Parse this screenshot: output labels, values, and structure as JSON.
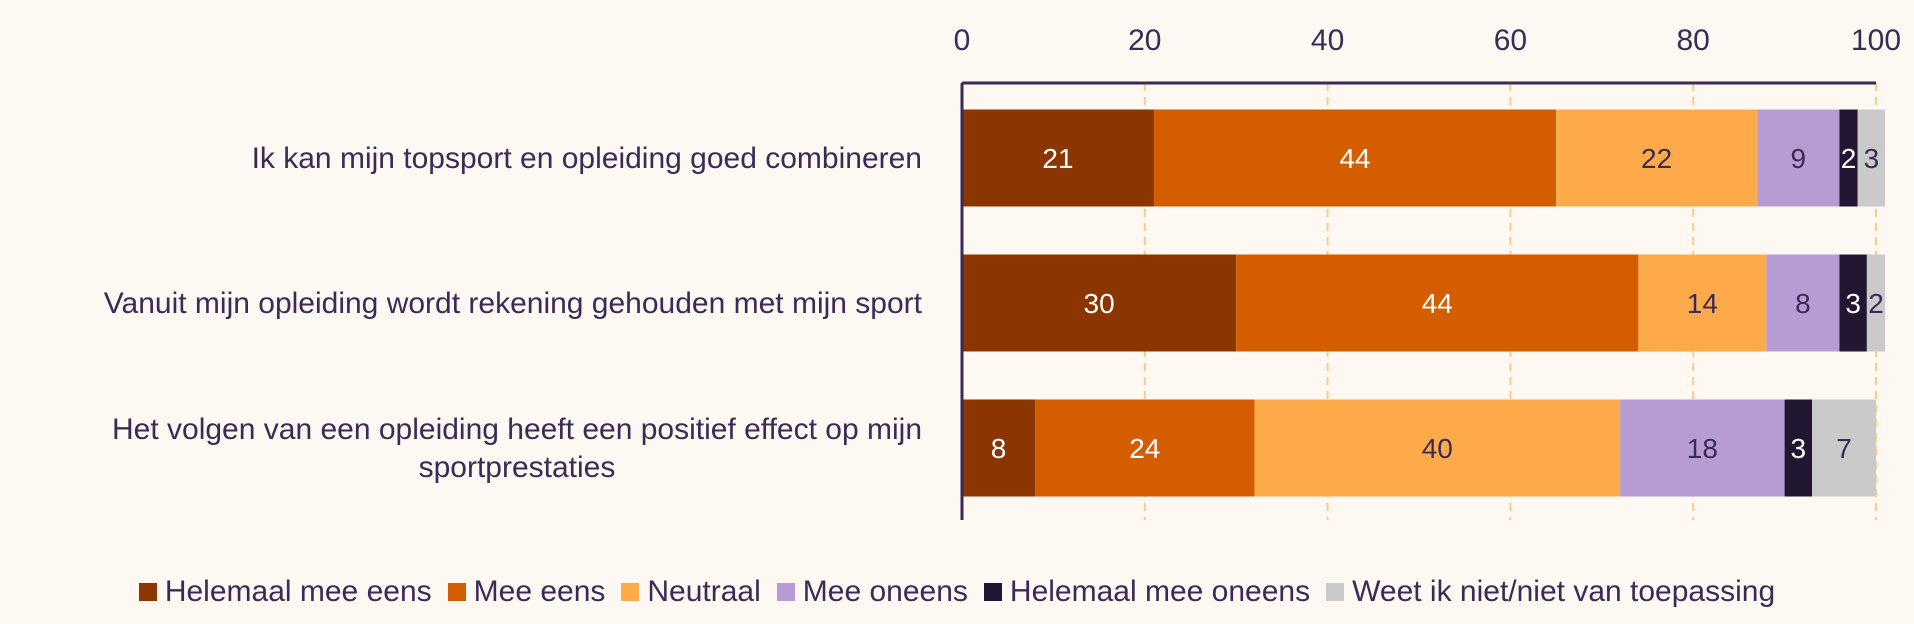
{
  "chart_data": {
    "type": "bar",
    "orientation": "horizontal",
    "stacked": true,
    "categories": [
      "Ik kan mijn topsport en opleiding goed combineren",
      "Vanuit mijn opleiding wordt rekening gehouden met mijn sport",
      "Het volgen van een opleiding heeft een positief effect op mijn sportprestaties"
    ],
    "series": [
      {
        "name": "Helemaal mee eens",
        "color": "#8b3600",
        "label_color": "#ffffff",
        "values": [
          21,
          30,
          8
        ]
      },
      {
        "name": "Mee eens",
        "color": "#d45d00",
        "label_color": "#ffffff",
        "values": [
          44,
          44,
          24
        ]
      },
      {
        "name": "Neutraal",
        "color": "#fdab4a",
        "label_color": "#3b2a55",
        "values": [
          22,
          14,
          40
        ]
      },
      {
        "name": "Mee oneens",
        "color": "#b79bd3",
        "label_color": "#3b2a55",
        "values": [
          9,
          8,
          18
        ]
      },
      {
        "name": "Helemaal mee oneens",
        "color": "#221733",
        "label_color": "#ffffff",
        "values": [
          2,
          3,
          3
        ]
      },
      {
        "name": "Weet ik niet/niet van toepassing",
        "color": "#cacaca",
        "label_color": "#3b2a55",
        "values": [
          3,
          2,
          7
        ]
      }
    ],
    "x_ticks": [
      0,
      20,
      40,
      60,
      80,
      100
    ],
    "xlim": [
      0,
      100
    ],
    "xaxis_position": "top",
    "grid": "vertical dashed",
    "legend_position": "bottom",
    "title": "",
    "xlabel": "",
    "ylabel": ""
  },
  "colors": {
    "background": "#fdf8f2",
    "text": "#3b2a55",
    "axis": "#3b2a55",
    "grid": "#fdc98a"
  }
}
